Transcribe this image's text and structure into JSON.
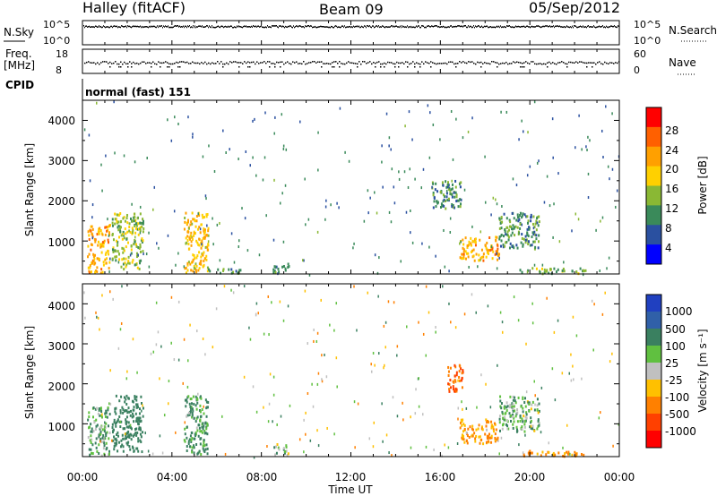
{
  "header": {
    "radar": "Halley (fitACF)",
    "beam": "Beam 09",
    "date": "05/Sep/2012"
  },
  "nsky": {
    "label": "N.Sky",
    "ticks_left": [
      "10^5",
      "10^0"
    ],
    "ticks_right": [
      "10^5",
      "10^0"
    ],
    "right_label": "N.Search"
  },
  "freq": {
    "label_line1": "Freq.",
    "label_line2": "[MHz]",
    "ticks_left": [
      "18",
      "8"
    ],
    "ticks_right": [
      "60",
      "0"
    ],
    "right_label": "Nave"
  },
  "cpid": {
    "label": "CPID",
    "value": "normal (fast) 151"
  },
  "x_axis": {
    "title": "Time UT",
    "ticks": [
      "00:00",
      "04:00",
      "08:00",
      "12:00",
      "16:00",
      "20:00",
      "00:00"
    ]
  },
  "power_panel": {
    "ylabel": "Slant Range [km]",
    "yticks": [
      "4000",
      "3000",
      "2000",
      "1000"
    ],
    "colorbar_title": "Power [dB]",
    "colorbar_ticks": [
      "28",
      "24",
      "20",
      "16",
      "12",
      "8",
      "4"
    ],
    "colorbar_colors": [
      "#ff0000",
      "#ff6000",
      "#ffa000",
      "#ffd000",
      "#8ab834",
      "#3a8a5a",
      "#2a50a0",
      "#0000ff"
    ]
  },
  "velocity_panel": {
    "ylabel": "Slant Range [km]",
    "yticks": [
      "4000",
      "3000",
      "2000",
      "1000"
    ],
    "colorbar_title": "Velocity [m s⁻¹]",
    "colorbar_ticks": [
      "1000",
      "500",
      "100",
      "25",
      "-25",
      "-100",
      "-500",
      "-1000"
    ],
    "colorbar_colors": [
      "#2040c0",
      "#3060a8",
      "#3a8060",
      "#60c040",
      "#c0c0c0",
      "#ffc000",
      "#ff8000",
      "#ff4000",
      "#ff0000"
    ]
  },
  "chart_data": [
    {
      "type": "scatter",
      "title": "N.Sky / N.Search",
      "x": [
        0,
        24
      ],
      "xlim": [
        0,
        24
      ],
      "ylim": [
        0,
        5
      ],
      "series": [
        {
          "values": [
            4.8,
            4.8
          ]
        }
      ]
    },
    {
      "type": "scatter",
      "title": "Freq. [MHz] / Nave",
      "xlim": [
        0,
        24
      ],
      "ylim": [
        8,
        18
      ],
      "series": [
        {
          "values": [
            11.5,
            11.5
          ]
        }
      ]
    },
    {
      "type": "heatmap",
      "ylabel": "Slant Range [km]",
      "xlabel": "Time UT",
      "xlim": [
        0,
        24
      ],
      "ylim": [
        180,
        4500
      ],
      "zlabel": "Power [dB]",
      "zlim": [
        0,
        32
      ],
      "clusters": [
        {
          "t0": 0.2,
          "t1": 1.2,
          "r0": 200,
          "r1": 1400,
          "v": 22
        },
        {
          "t0": 1.3,
          "t1": 2.7,
          "r0": 300,
          "r1": 1700,
          "v": 14
        },
        {
          "t0": 4.5,
          "t1": 5.6,
          "r0": 200,
          "r1": 1700,
          "v": 20
        },
        {
          "t0": 5.6,
          "t1": 7.2,
          "r0": 180,
          "r1": 300,
          "v": 10
        },
        {
          "t0": 8.5,
          "t1": 9.2,
          "r0": 200,
          "r1": 500,
          "v": 8
        },
        {
          "t0": 15.6,
          "t1": 16.9,
          "r0": 1800,
          "r1": 2500,
          "v": 9
        },
        {
          "t0": 16.8,
          "t1": 18.6,
          "r0": 500,
          "r1": 1100,
          "v": 22
        },
        {
          "t0": 18.6,
          "t1": 20.4,
          "r0": 800,
          "r1": 1700,
          "v": 10
        },
        {
          "t0": 19.5,
          "t1": 22.5,
          "r0": 180,
          "r1": 320,
          "v": 12
        }
      ]
    },
    {
      "type": "heatmap",
      "ylabel": "Slant Range [km]",
      "xlabel": "Time UT",
      "xlim": [
        0,
        24
      ],
      "ylim": [
        180,
        4500
      ],
      "zlabel": "Velocity [m s⁻¹]",
      "zlim": [
        -1000,
        1000
      ],
      "clusters": [
        {
          "t0": 0.2,
          "t1": 1.2,
          "r0": 200,
          "r1": 1400,
          "v": 100
        },
        {
          "t0": 1.3,
          "t1": 2.7,
          "r0": 300,
          "r1": 1700,
          "v": 300
        },
        {
          "t0": 4.5,
          "t1": 5.6,
          "r0": 200,
          "r1": 1700,
          "v": 120
        },
        {
          "t0": 8.5,
          "t1": 9.2,
          "r0": 200,
          "r1": 500,
          "v": 60
        },
        {
          "t0": 16.3,
          "t1": 17.0,
          "r0": 1800,
          "r1": 2500,
          "v": -500
        },
        {
          "t0": 16.8,
          "t1": 18.6,
          "r0": 500,
          "r1": 1100,
          "v": -120
        },
        {
          "t0": 18.6,
          "t1": 20.4,
          "r0": 800,
          "r1": 1700,
          "v": 80
        },
        {
          "t0": 19.5,
          "t1": 22.5,
          "r0": 180,
          "r1": 320,
          "v": -150
        }
      ]
    }
  ]
}
